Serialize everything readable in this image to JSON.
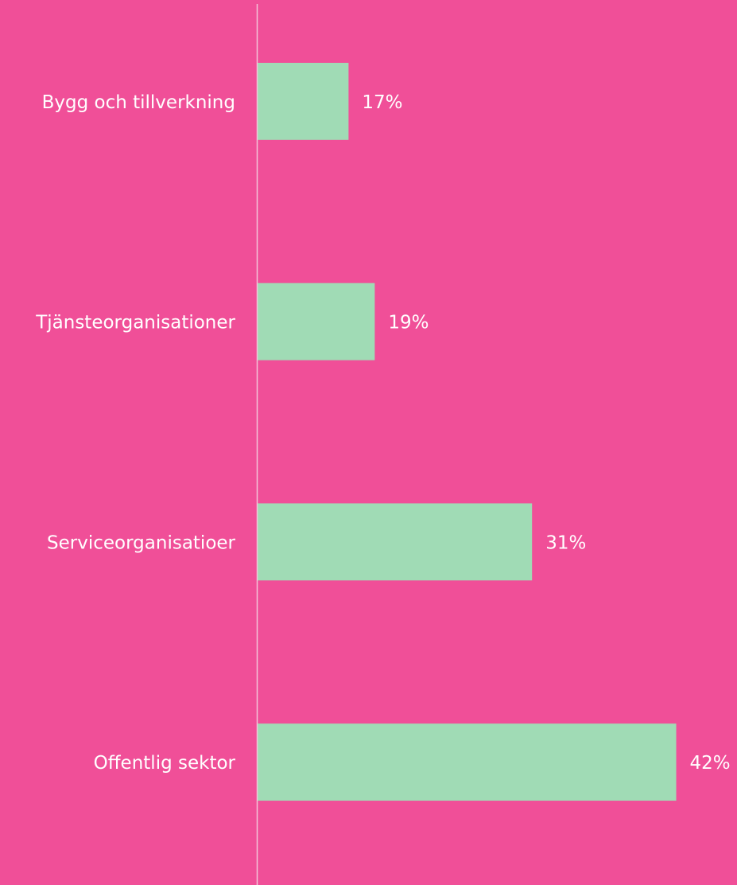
{
  "chart_data": {
    "type": "hbar",
    "categories": [
      "Bygg och tillverkning",
      "Tjänsteorganisationer",
      "Serviceorganisatioer",
      "Offentlig sektor"
    ],
    "values": [
      17,
      19,
      31,
      42
    ],
    "value_labels": [
      "17%",
      "19%",
      "31%",
      "42%"
    ],
    "color": "#a0dbb5",
    "xlim": [
      10,
      45
    ]
  }
}
